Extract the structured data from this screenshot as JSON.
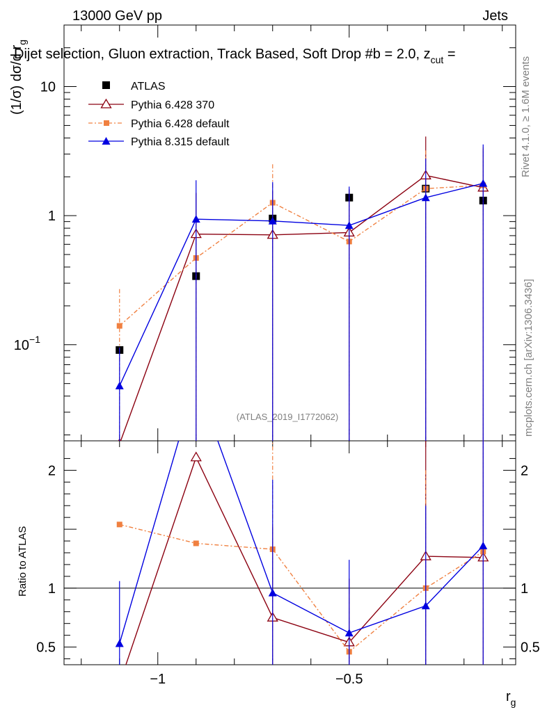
{
  "header": {
    "left": "13000 GeV pp",
    "right": "Jets",
    "title": "Dijet selection, Gluon extraction, Track Based, Soft Drop #b = 2.0, z",
    "title_sub": "cut",
    "title_tail": " ="
  },
  "side": {
    "rivet": "Rivet 4.1.0, ≥ 1.6M events",
    "mcplots": "mcplots.cern.ch [arXiv:1306.3436]"
  },
  "watermark": "(ATLAS_2019_I1772062)",
  "colors": {
    "atlas": "#000000",
    "p6_370": "#8b0010",
    "p6_def": "#f08040",
    "p8": "#0000e0"
  },
  "chart_data": [
    {
      "type": "line",
      "panel": "main",
      "ylabel": "(1/σ) dσ/d r",
      "ylabel_sub": "g",
      "yscale": "log",
      "ylim": [
        0.018,
        30
      ],
      "xlim": [
        -1.245,
        -0.065
      ],
      "y_ticks": [
        {
          "v": 0.1,
          "label": "10",
          "exp": "−1"
        },
        {
          "v": 1,
          "label": "1",
          "exp": ""
        },
        {
          "v": 10,
          "label": "10",
          "exp": ""
        }
      ],
      "x": [
        -1.1,
        -0.9,
        -0.7,
        -0.5,
        -0.3,
        -0.15
      ],
      "legend": [
        "ATLAS",
        "Pythia 6.428 370",
        "Pythia 6.428 default",
        "Pythia 8.315 default"
      ],
      "series": [
        {
          "name": "ATLAS",
          "key": "atlas",
          "marker": "square",
          "values": [
            0.091,
            0.34,
            0.95,
            1.38,
            1.62,
            1.31
          ],
          "err_up": [
            null,
            null,
            null,
            null,
            null,
            null
          ]
        },
        {
          "name": "Pythia 6.428 370",
          "key": "p6_370",
          "marker": "triangle-open",
          "values": [
            0.017,
            0.72,
            0.71,
            0.74,
            2.05,
            1.65
          ],
          "err_up": [
            null,
            1.5,
            1.55,
            1.6,
            4.1,
            3.3
          ]
        },
        {
          "name": "Pythia 6.428 default",
          "key": "p6_def",
          "marker": "square-small",
          "values": [
            0.14,
            0.47,
            1.26,
            0.63,
            1.62,
            1.72
          ],
          "err_up": [
            0.27,
            1.0,
            2.5,
            1.3,
            3.2,
            3.4
          ]
        },
        {
          "name": "Pythia 8.315 default",
          "key": "p8",
          "marker": "triangle",
          "values": [
            0.048,
            0.94,
            0.91,
            0.84,
            1.38,
            1.78
          ],
          "err_up": [
            0.095,
            1.88,
            1.82,
            1.68,
            2.76,
            3.56
          ]
        }
      ]
    },
    {
      "type": "line",
      "panel": "ratio",
      "ylabel": "Ratio to ATLAS",
      "ylim": [
        0.35,
        2.25
      ],
      "xlim": [
        -1.245,
        -0.065
      ],
      "xlabel": "r",
      "xlabel_sub": "g",
      "x_ticks": [
        {
          "v": -1.0,
          "label": "−1"
        },
        {
          "v": -0.5,
          "label": "−0.5"
        }
      ],
      "y_ticks": [
        {
          "v": 0.5,
          "label": "0.5"
        },
        {
          "v": 1,
          "label": "1"
        },
        {
          "v": 2,
          "label": "2"
        }
      ],
      "x": [
        -1.1,
        -0.9,
        -0.7,
        -0.5,
        -0.3,
        -0.15
      ],
      "series": [
        {
          "name": "Pythia 6.428 370",
          "key": "p6_370",
          "marker": "triangle-open",
          "values": [
            0.19,
            2.11,
            0.75,
            0.54,
            1.27,
            1.26
          ],
          "err_up": [
            null,
            null,
            1.52,
            1.08,
            2.5,
            2.5
          ]
        },
        {
          "name": "Pythia 6.428 default",
          "key": "p6_def",
          "marker": "square-small",
          "values": [
            1.54,
            1.38,
            1.33,
            0.46,
            1.0,
            1.31
          ],
          "err_up": [
            null,
            null,
            2.7,
            0.95,
            2.0,
            2.6
          ]
        },
        {
          "name": "Pythia 8.315 default",
          "key": "p8",
          "marker": "triangle",
          "values": [
            0.53,
            2.76,
            0.96,
            0.62,
            0.85,
            1.36
          ],
          "err_up": [
            1.06,
            null,
            1.92,
            1.24,
            1.7,
            2.7
          ]
        }
      ]
    }
  ]
}
